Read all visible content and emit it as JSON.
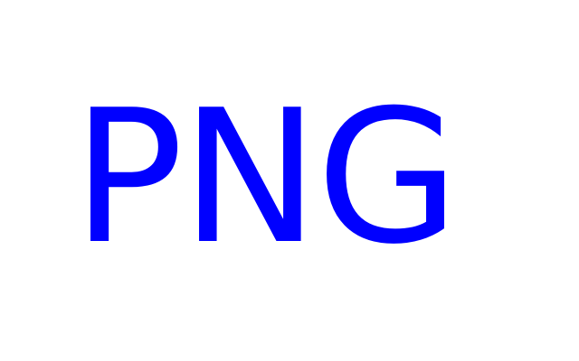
{
  "text": "PNG",
  "colors": {
    "text": "#0000ff",
    "background": "#ffffff"
  }
}
